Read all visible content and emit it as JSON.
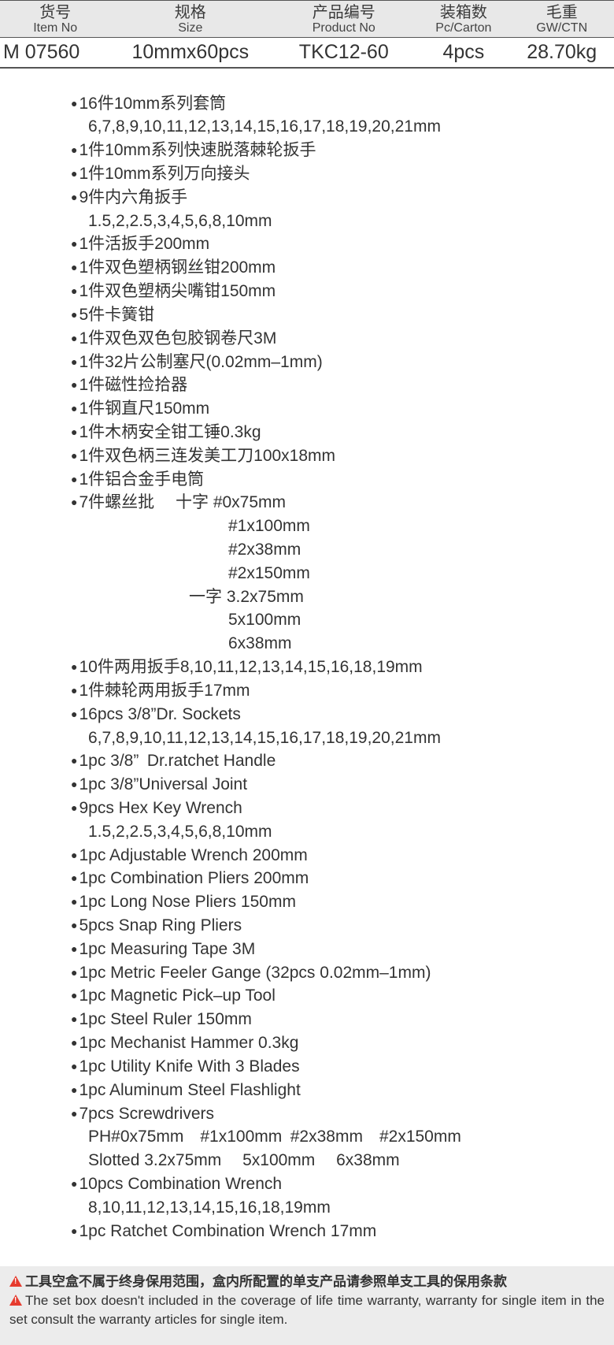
{
  "headers": [
    {
      "cn": "货号",
      "en": "Item No"
    },
    {
      "cn": "规格",
      "en": "Size"
    },
    {
      "cn": "产品编号",
      "en": "Product No"
    },
    {
      "cn": "装箱数",
      "en": "Pc/Carton"
    },
    {
      "cn": "毛重",
      "en": "GW/CTN"
    }
  ],
  "row": {
    "item_no": "M 07560",
    "size": "10mmx60pcs",
    "product_no": "TKC12-60",
    "carton": "4pcs",
    "gw": "28.70kg"
  },
  "col_widths": [
    "18%",
    "26%",
    "24%",
    "15%",
    "17%"
  ],
  "specs_cn": [
    {
      "t": "16件10mm系列套筒",
      "sub": [
        "6,7,8,9,10,11,12,13,14,15,16,17,18,19,20,21mm"
      ]
    },
    {
      "t": "1件10mm系列快速脱落棘轮扳手"
    },
    {
      "t": "1件10mm系列万向接头"
    },
    {
      "t": "9件内六角扳手",
      "sub": [
        "1.5,2,2.5,3,4,5,6,8,10mm"
      ]
    },
    {
      "t": "1件活扳手200mm"
    },
    {
      "t": "1件双色塑柄钢丝钳200mm"
    },
    {
      "t": "1件双色塑柄尖嘴钳150mm"
    },
    {
      "t": "5件卡簧钳"
    },
    {
      "t": "1件双色双色包胶钢卷尺3M"
    },
    {
      "t": "1件32片公制塞尺(0.02mm–1mm)"
    },
    {
      "t": "1件磁性捡拾器"
    },
    {
      "t": "1件钢直尺150mm"
    },
    {
      "t": "1件木柄安全钳工锤0.3kg"
    },
    {
      "t": "1件双色柄三连发美工刀100x18mm"
    },
    {
      "t": "1件铝合金手电筒"
    },
    {
      "t": "7件螺丝批  十字 #0x75mm",
      "sub_i1": [
        "#1x100mm",
        "#2x38mm",
        "#2x150mm"
      ],
      "sub_i2": [
        "一字 3.2x75mm"
      ],
      "sub_i1b": [
        "5x100mm",
        "6x38mm"
      ]
    },
    {
      "t": "10件两用扳手8,10,11,12,13,14,15,16,18,19mm"
    },
    {
      "t": "1件棘轮两用扳手17mm"
    }
  ],
  "specs_en": [
    {
      "t": "16pcs 3/8”Dr. Sockets",
      "sub": [
        "6,7,8,9,10,11,12,13,14,15,16,17,18,19,20,21mm"
      ]
    },
    {
      "t": "1pc 3/8” Dr.ratchet Handle"
    },
    {
      "t": "1pc 3/8”Universal Joint"
    },
    {
      "t": "9pcs Hex Key Wrench",
      "sub": [
        "1.5,2,2.5,3,4,5,6,8,10mm"
      ]
    },
    {
      "t": "1pc Adjustable Wrench 200mm"
    },
    {
      "t": "1pc Combination Pliers 200mm"
    },
    {
      "t": "1pc Long Nose Pliers 150mm"
    },
    {
      "t": "5pcs Snap Ring Pliers"
    },
    {
      "t": "1pc Measuring Tape 3M"
    },
    {
      "t": "1pc Metric Feeler Gange (32pcs 0.02mm–1mm)"
    },
    {
      "t": "1pc Magnetic Pick–up Tool"
    },
    {
      "t": "1pc Steel Ruler 150mm"
    },
    {
      "t": "1pc Mechanist Hammer 0.3kg"
    },
    {
      "t": "1pc Utility Knife With 3 Blades"
    },
    {
      "t": "1pc Aluminum Steel Flashlight"
    },
    {
      "t": "7pcs Screwdrivers",
      "sub": [
        "PH#0x75mm #1x100mm #2x38mm #2x150mm",
        "Slotted 3.2x75mm  5x100mm  6x38mm"
      ]
    },
    {
      "t": "10pcs Combination Wrench",
      "sub": [
        "8,10,11,12,13,14,15,16,18,19mm"
      ]
    },
    {
      "t": "1pc Ratchet Combination Wrench 17mm"
    }
  ],
  "footer": {
    "cn": "工具空盒不属于终身保用范围，盒内所配置的单支产品请参照单支工具的保用条款",
    "en": "The set box doesn't included in the coverage of life time warranty, warranty for single item in the set consult the warranty articles for single item."
  }
}
